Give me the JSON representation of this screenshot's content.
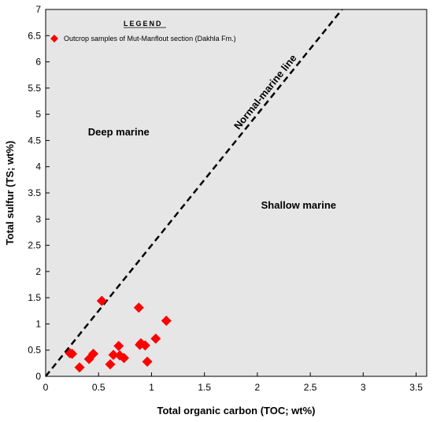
{
  "chart_data": {
    "type": "scatter",
    "xlabel": "Total organic carbon (TOC; wt%)",
    "ylabel": "Total sulfur (TS; wt%)",
    "xlim": [
      0,
      3.6
    ],
    "ylim": [
      0,
      7
    ],
    "x_ticks": [
      "0",
      "0.5",
      "1",
      "1.5",
      "2",
      "2.5",
      "3",
      "3.5"
    ],
    "y_ticks": [
      "0",
      "0.5",
      "1",
      "1.5",
      "2",
      "2.5",
      "3",
      "3.5",
      "4",
      "4.5",
      "5",
      "5.5",
      "6",
      "6.5",
      "7"
    ],
    "x_tick_values": [
      0,
      0.5,
      1,
      1.5,
      2,
      2.5,
      3,
      3.5
    ],
    "y_tick_values": [
      0,
      0.5,
      1,
      1.5,
      2,
      2.5,
      3,
      3.5,
      4,
      4.5,
      5,
      5.5,
      6,
      6.5,
      7
    ],
    "grid": false,
    "background_color": "#e6e6e6",
    "legend": {
      "title": "LEGEND",
      "placement": "top-left",
      "entries": [
        {
          "label": "Outcrop samples of Mut-Manflout section (Dakhla Fm.)",
          "marker": "diamond",
          "color": "#ff0000"
        }
      ]
    },
    "series": [
      {
        "name": "Outcrop samples of Mut-Manflout section (Dakhla Fm.)",
        "marker": "diamond",
        "color": "#ff0000",
        "points": [
          {
            "x": 0.23,
            "y": 0.44
          },
          {
            "x": 0.25,
            "y": 0.43
          },
          {
            "x": 0.32,
            "y": 0.17
          },
          {
            "x": 0.41,
            "y": 0.33
          },
          {
            "x": 0.45,
            "y": 0.43
          },
          {
            "x": 0.53,
            "y": 1.44
          },
          {
            "x": 0.61,
            "y": 0.23
          },
          {
            "x": 0.64,
            "y": 0.41
          },
          {
            "x": 0.69,
            "y": 0.58
          },
          {
            "x": 0.7,
            "y": 0.4
          },
          {
            "x": 0.74,
            "y": 0.35
          },
          {
            "x": 0.88,
            "y": 1.31
          },
          {
            "x": 0.89,
            "y": 0.6
          },
          {
            "x": 0.9,
            "y": 0.63
          },
          {
            "x": 0.94,
            "y": 0.59
          },
          {
            "x": 0.96,
            "y": 0.28
          },
          {
            "x": 1.04,
            "y": 0.72
          },
          {
            "x": 1.14,
            "y": 1.06
          }
        ]
      }
    ],
    "reference_line": {
      "label": "Normal-marine line",
      "style": "dashed",
      "color": "#000000",
      "slope": 2.5,
      "x_range": [
        0,
        2.8
      ]
    },
    "annotations": [
      {
        "text": "Deep marine",
        "x": 0.69,
        "y": 4.6
      },
      {
        "text": "Shallow marine",
        "x": 2.39,
        "y": 3.2
      }
    ]
  }
}
